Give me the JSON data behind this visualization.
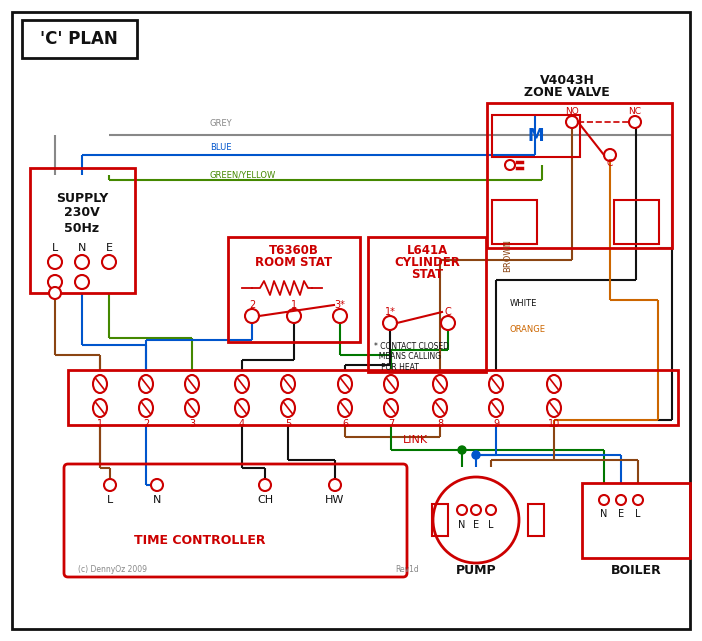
{
  "title": "'C' PLAN",
  "bg_color": "#ffffff",
  "red": "#cc0000",
  "blue": "#0055cc",
  "green": "#007700",
  "black": "#111111",
  "grey": "#888888",
  "brown": "#8B4513",
  "orange": "#cc6600",
  "green_yellow": "#448800",
  "label_color": "#222266",
  "zone_valve_title1": "V4043H",
  "zone_valve_title2": "ZONE VALVE",
  "room_stat_title1": "T6360B",
  "room_stat_title2": "ROOM STAT",
  "cyl_stat_title1": "L641A",
  "cyl_stat_title2": "CYLINDER",
  "cyl_stat_title3": "STAT",
  "contact_note": "* CONTACT CLOSED\n  MEANS CALLING\n   FOR HEAT",
  "supply_line1": "SUPPLY",
  "supply_line2": "230V",
  "supply_line3": "50Hz",
  "link_text": "LINK",
  "time_controller_text": "TIME CONTROLLER",
  "pump_text": "PUMP",
  "boiler_text": "BOILER",
  "copyright_text": "(c) DennyOz 2009",
  "rev_text": "Rev1d",
  "grey_label": "GREY",
  "blue_label": "BLUE",
  "gy_label": "GREEN/YELLOW",
  "brown_label": "BROWN",
  "white_label": "WHITE",
  "orange_label": "ORANGE"
}
